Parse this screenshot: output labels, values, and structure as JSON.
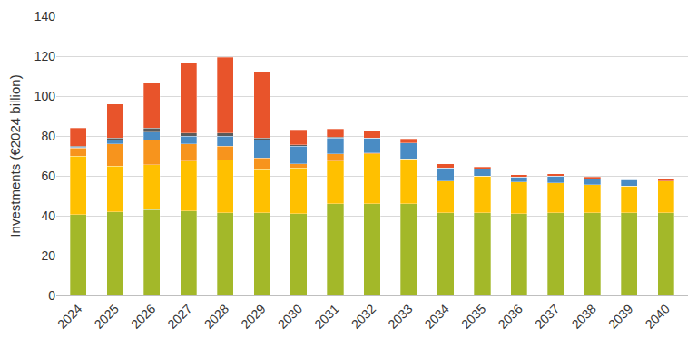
{
  "chart_data": {
    "type": "bar",
    "stacked": true,
    "grid": true,
    "y_label": "Investments (€2024 billion)",
    "categories": [
      "2024",
      "2025",
      "2026",
      "2027",
      "2028",
      "2029",
      "2030",
      "2031",
      "2032",
      "2033",
      "2034",
      "2035",
      "2036",
      "2037",
      "2038",
      "2039",
      "2040"
    ],
    "series": [
      {
        "color": "#a3b829",
        "values": [
          40.5,
          42,
          43,
          42.5,
          41.5,
          41.5,
          41,
          46,
          46,
          46,
          41.5,
          41.5,
          41,
          41.5,
          41.5,
          41.5,
          41.5
        ]
      },
      {
        "color": "#ffc000",
        "values": [
          29.5,
          23,
          22.5,
          25,
          26.5,
          21.5,
          23,
          21.5,
          25,
          22.5,
          16,
          18.5,
          16,
          15,
          14,
          13.5,
          16
        ]
      },
      {
        "color": "#f7941d",
        "values": [
          4,
          11,
          12.5,
          8.5,
          7,
          6,
          2,
          3.5,
          0.5,
          0,
          0,
          0,
          0,
          0,
          0,
          0,
          0
        ]
      },
      {
        "color": "#4a8cc4",
        "values": [
          0.5,
          2,
          4,
          4,
          5,
          9,
          9,
          8,
          7.5,
          8,
          6.5,
          3.5,
          2.5,
          3.5,
          3,
          3,
          0
        ]
      },
      {
        "color": "#5a5a5a",
        "values": [
          0.5,
          1,
          2,
          1.5,
          1.5,
          1,
          0.5,
          0.5,
          0,
          0,
          0,
          0,
          0,
          0,
          0,
          0,
          0
        ]
      },
      {
        "color": "#e8542b",
        "values": [
          9,
          17,
          22.5,
          35,
          38,
          33.5,
          7.5,
          4,
          3.5,
          2,
          2,
          1,
          1,
          1,
          1,
          0.5,
          1
        ]
      }
    ],
    "ylim": [
      0,
      140
    ],
    "yticks": [
      0,
      20,
      40,
      60,
      80,
      100,
      120,
      140
    ]
  }
}
